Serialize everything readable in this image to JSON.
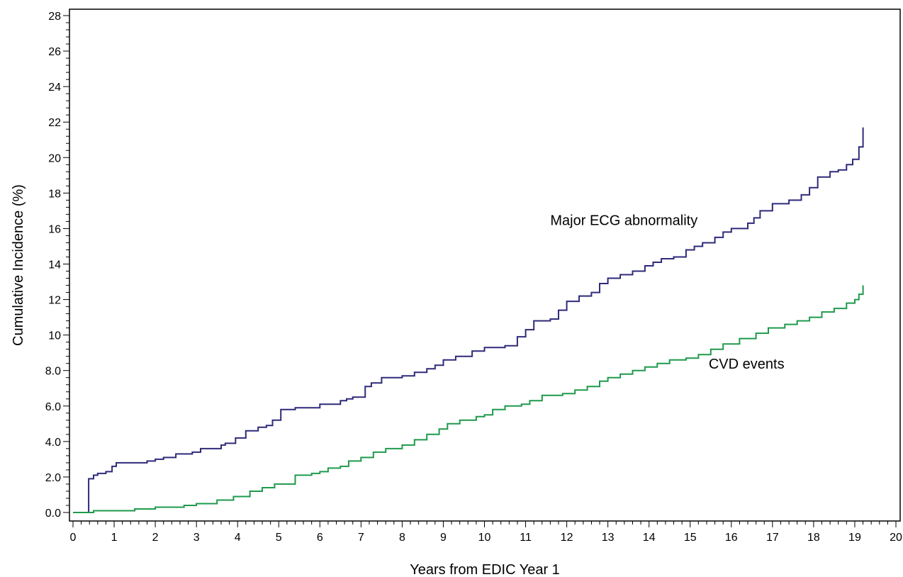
{
  "chart_data": {
    "type": "line",
    "step": true,
    "title": "",
    "xlabel": "Years from EDIC Year 1",
    "ylabel": "Cumulative Incidence (%)",
    "xlim": [
      0,
      20
    ],
    "ylim": [
      0,
      28
    ],
    "x_ticks": [
      0,
      1,
      2,
      3,
      4,
      5,
      6,
      7,
      8,
      9,
      10,
      11,
      12,
      13,
      14,
      15,
      16,
      17,
      18,
      19,
      20
    ],
    "x_tick_labels": [
      "0",
      "1",
      "2",
      "3",
      "4",
      "5",
      "6",
      "7",
      "8",
      "9",
      "10",
      "11",
      "12",
      "13",
      "14",
      "15",
      "16",
      "17",
      "18",
      "19",
      "20"
    ],
    "y_ticks": [
      0,
      2,
      4,
      6,
      8,
      10,
      12,
      14,
      16,
      18,
      20,
      22,
      24,
      26,
      28
    ],
    "y_tick_labels": [
      "0.0",
      "2.0",
      "4.0",
      "6.0",
      "8.0",
      "10",
      "12",
      "14",
      "16",
      "18",
      "20",
      "22",
      "24",
      "26",
      "28"
    ],
    "grid": false,
    "legend": "none",
    "series": [
      {
        "name": "Major ECG abnormality",
        "color": "#2e2a7a",
        "x": [
          0,
          0.38,
          0.5,
          0.6,
          0.8,
          0.95,
          1.05,
          1.8,
          2.0,
          2.2,
          2.5,
          2.7,
          2.9,
          3.1,
          3.6,
          3.7,
          3.95,
          4.2,
          4.5,
          4.7,
          4.85,
          5.05,
          5.4,
          5.6,
          6.0,
          6.5,
          6.65,
          6.8,
          7.1,
          7.25,
          7.5,
          8.0,
          8.3,
          8.6,
          8.8,
          9.0,
          9.3,
          9.7,
          10.0,
          10.5,
          10.8,
          11.0,
          11.2,
          11.6,
          11.8,
          12.0,
          12.3,
          12.6,
          12.8,
          13.0,
          13.3,
          13.6,
          13.9,
          14.1,
          14.3,
          14.6,
          14.9,
          15.1,
          15.3,
          15.6,
          15.8,
          16.0,
          16.4,
          16.55,
          16.7,
          17.0,
          17.4,
          17.7,
          17.9,
          18.1,
          18.4,
          18.6,
          18.8,
          18.95,
          19.1,
          19.2
        ],
        "y": [
          0.0,
          1.9,
          2.1,
          2.2,
          2.3,
          2.6,
          2.8,
          2.9,
          3.0,
          3.1,
          3.3,
          3.3,
          3.4,
          3.6,
          3.8,
          3.9,
          4.2,
          4.6,
          4.8,
          4.9,
          5.2,
          5.8,
          5.9,
          5.9,
          6.1,
          6.3,
          6.4,
          6.5,
          7.1,
          7.3,
          7.6,
          7.7,
          7.9,
          8.1,
          8.3,
          8.6,
          8.8,
          9.1,
          9.3,
          9.4,
          9.9,
          10.3,
          10.8,
          10.9,
          11.4,
          11.9,
          12.2,
          12.4,
          12.9,
          13.2,
          13.4,
          13.6,
          13.9,
          14.1,
          14.3,
          14.4,
          14.8,
          15.0,
          15.2,
          15.5,
          15.8,
          16.0,
          16.3,
          16.6,
          17.0,
          17.4,
          17.6,
          17.9,
          18.3,
          18.9,
          19.2,
          19.3,
          19.6,
          19.9,
          20.6,
          21.7
        ]
      },
      {
        "name": "CVD events",
        "color": "#1e9a4c",
        "x": [
          0,
          0.5,
          1.5,
          2.0,
          2.7,
          3.0,
          3.5,
          3.9,
          4.3,
          4.6,
          4.9,
          5.4,
          5.8,
          6.0,
          6.2,
          6.5,
          6.7,
          7.0,
          7.3,
          7.6,
          8.0,
          8.3,
          8.6,
          8.9,
          9.1,
          9.4,
          9.8,
          10.0,
          10.2,
          10.5,
          10.9,
          11.1,
          11.4,
          11.9,
          12.2,
          12.5,
          12.8,
          13.0,
          13.3,
          13.6,
          13.9,
          14.2,
          14.5,
          14.9,
          15.2,
          15.5,
          15.8,
          16.2,
          16.6,
          16.9,
          17.3,
          17.6,
          17.9,
          18.2,
          18.5,
          18.8,
          19.0,
          19.1,
          19.2
        ],
        "y": [
          0.0,
          0.1,
          0.2,
          0.3,
          0.4,
          0.5,
          0.7,
          0.9,
          1.2,
          1.4,
          1.6,
          2.1,
          2.2,
          2.3,
          2.5,
          2.6,
          2.9,
          3.1,
          3.4,
          3.6,
          3.8,
          4.1,
          4.4,
          4.7,
          5.0,
          5.2,
          5.4,
          5.5,
          5.8,
          6.0,
          6.1,
          6.3,
          6.6,
          6.7,
          6.9,
          7.1,
          7.4,
          7.6,
          7.8,
          8.0,
          8.2,
          8.4,
          8.6,
          8.7,
          8.9,
          9.2,
          9.5,
          9.8,
          10.1,
          10.4,
          10.6,
          10.8,
          11.0,
          11.3,
          11.5,
          11.8,
          12.0,
          12.3,
          12.8
        ]
      }
    ],
    "annotations": [
      {
        "text": "Major ECG abnormality",
        "x": 11.6,
        "y": 16.2
      },
      {
        "text": "CVD events",
        "x": 15.45,
        "y": 8.1
      }
    ]
  }
}
